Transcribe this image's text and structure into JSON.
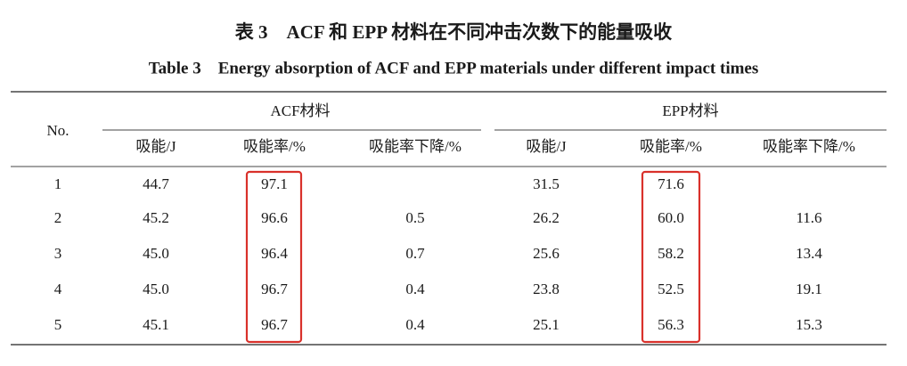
{
  "title_zh": "表 3    ACF 和 EPP 材料在不同冲击次数下的能量吸收",
  "title_en": "Table 3    Energy absorption of ACF and EPP materials under different impact times",
  "table": {
    "row_header": "No.",
    "groups": [
      "ACF材料",
      "EPP材料"
    ],
    "columns": [
      "吸能/J",
      "吸能率/%",
      "吸能率下降/%",
      "吸能/J",
      "吸能率/%",
      "吸能率下降/%"
    ],
    "rows": [
      [
        "1",
        "44.7",
        "97.1",
        null,
        "31.5",
        "71.6",
        null
      ],
      [
        "2",
        "45.2",
        "96.6",
        "0.5",
        "26.2",
        "60.0",
        "11.6"
      ],
      [
        "3",
        "45.0",
        "96.4",
        "0.7",
        "25.6",
        "58.2",
        "13.4"
      ],
      [
        "4",
        "45.0",
        "96.7",
        "0.4",
        "23.8",
        "52.5",
        "19.1"
      ],
      [
        "5",
        "45.1",
        "96.7",
        "0.4",
        "25.1",
        "56.3",
        "15.3"
      ]
    ]
  }
}
